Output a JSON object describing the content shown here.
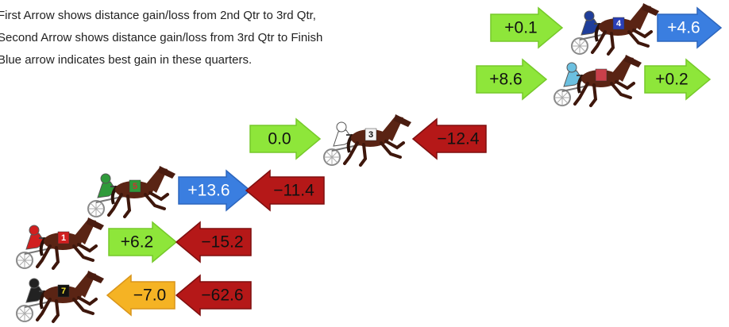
{
  "notes": [
    "First Arrow shows distance gain/loss from 2nd Qtr to 3rd Qtr,",
    "Second Arrow shows distance gain/loss from 3rd Qtr to Finish",
    "Blue arrow indicates best gain in these quarters."
  ],
  "horses": [
    {
      "number": "4",
      "arrow1": {
        "label": "+0.1",
        "color": "green"
      },
      "arrow2": {
        "label": "+4.6",
        "color": "blue"
      }
    },
    {
      "arrow1": {
        "label": "+8.6",
        "color": "green"
      },
      "arrow2": {
        "label": "+0.2",
        "color": "green"
      }
    },
    {
      "number": "3",
      "arrow1": {
        "label": "0.0",
        "color": "green"
      },
      "arrow2": {
        "label": "−12.4",
        "color": "red"
      }
    },
    {
      "number": "5",
      "arrow1": {
        "label": "+13.6",
        "color": "blue"
      },
      "arrow2": {
        "label": "−11.4",
        "color": "red"
      }
    },
    {
      "number": "1",
      "arrow1": {
        "label": "+6.2",
        "color": "green"
      },
      "arrow2": {
        "label": "−15.2",
        "color": "red"
      }
    },
    {
      "number": "7",
      "arrow1": {
        "label": "−7.0",
        "color": "orange"
      },
      "arrow2": {
        "label": "−62.6",
        "color": "red"
      }
    }
  ]
}
